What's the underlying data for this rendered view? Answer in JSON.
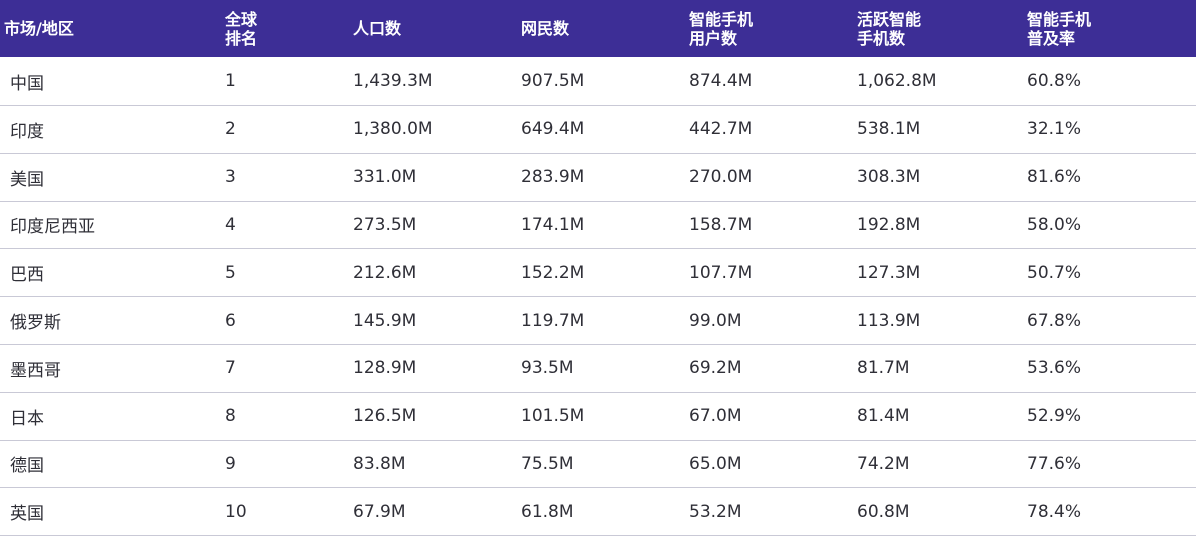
{
  "columns": [
    [
      "市场/地区"
    ],
    [
      "全球",
      "排名"
    ],
    [
      "人口数"
    ],
    [
      "网民数"
    ],
    [
      "智能手机",
      "用户数"
    ],
    [
      "活跃智能",
      "手机数"
    ],
    [
      "智能手机",
      "普及率"
    ]
  ],
  "rows": [
    [
      "中国",
      "1",
      "1,439.3M",
      "907.5M",
      "874.4M",
      "1,062.8M",
      "60.8%"
    ],
    [
      "印度",
      "2",
      "1,380.0M",
      "649.4M",
      "442.7M",
      "538.1M",
      "32.1%"
    ],
    [
      "美国",
      "3",
      "331.0M",
      "283.9M",
      "270.0M",
      "308.3M",
      "81.6%"
    ],
    [
      "印度尼西亚",
      "4",
      "273.5M",
      "174.1M",
      "158.7M",
      "192.8M",
      "58.0%"
    ],
    [
      "巴西",
      "5",
      "212.6M",
      "152.2M",
      "107.7M",
      "127.3M",
      "50.7%"
    ],
    [
      "俄罗斯",
      "6",
      "145.9M",
      "119.7M",
      "99.0M",
      "113.9M",
      "67.8%"
    ],
    [
      "墨西哥",
      "7",
      "128.9M",
      "93.5M",
      "69.2M",
      "81.7M",
      "53.6%"
    ],
    [
      "日本",
      "8",
      "126.5M",
      "101.5M",
      "67.0M",
      "81.4M",
      "52.9%"
    ],
    [
      "德国",
      "9",
      "83.8M",
      "75.5M",
      "65.0M",
      "74.2M",
      "77.6%"
    ],
    [
      "英国",
      "10",
      "67.9M",
      "61.8M",
      "53.2M",
      "60.8M",
      "78.4%"
    ]
  ]
}
